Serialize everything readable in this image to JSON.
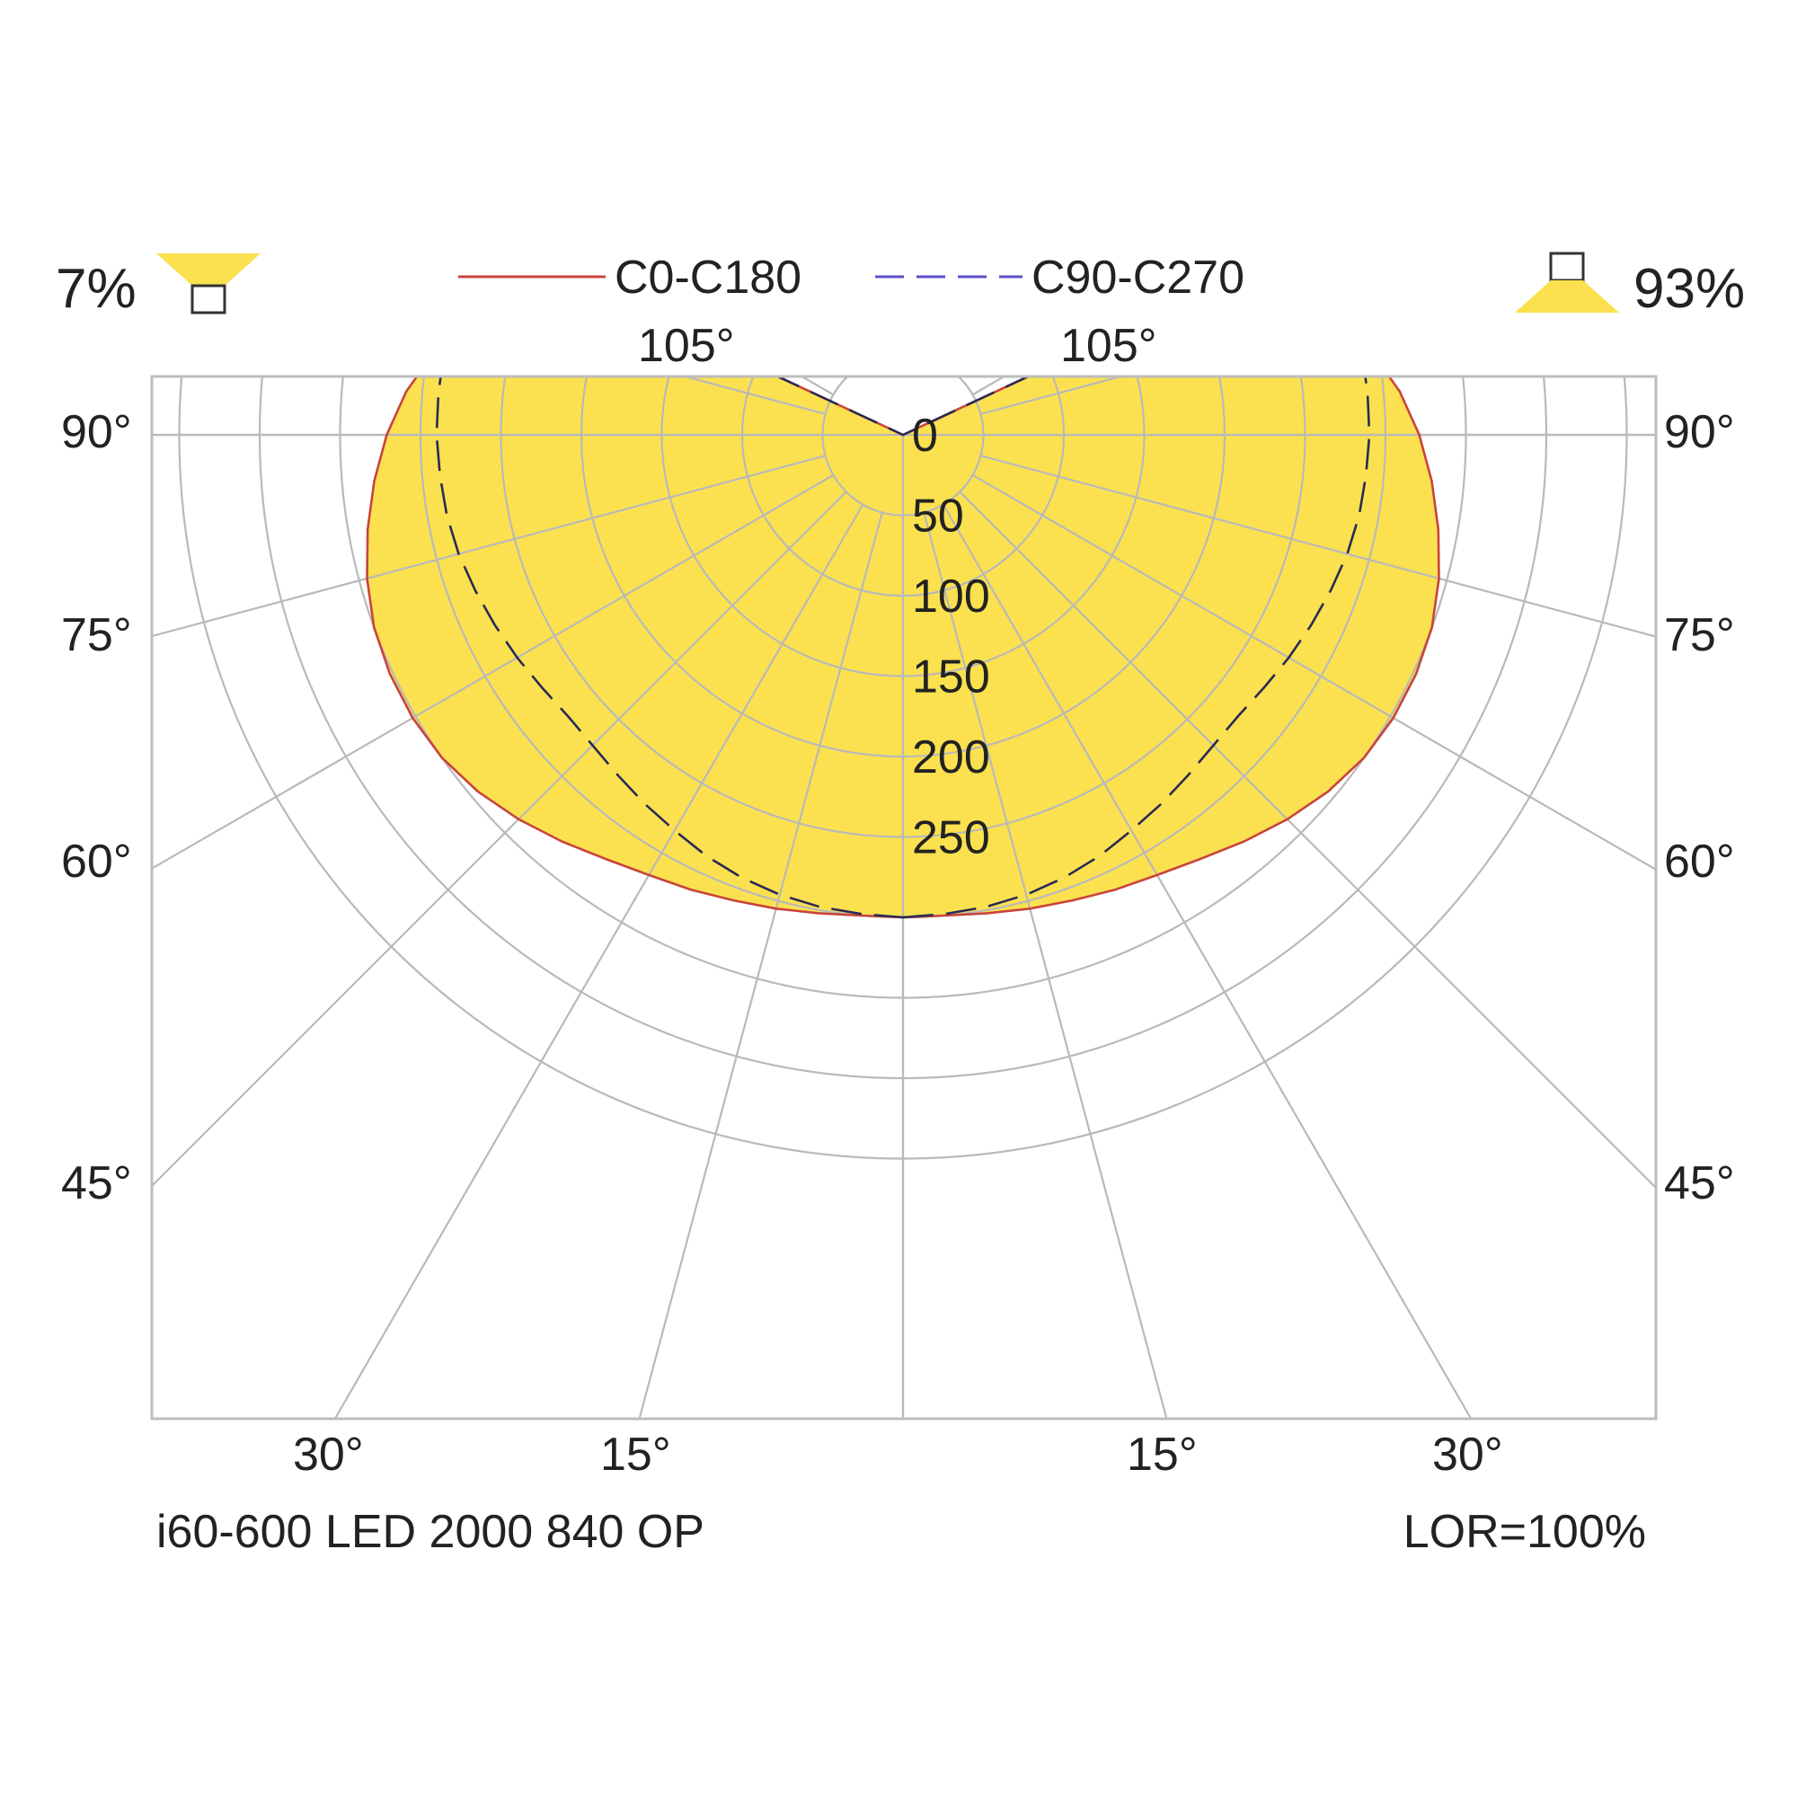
{
  "header": {
    "upward_percent": "7%",
    "downward_percent": "93%"
  },
  "footer": {
    "product_name": "i60-600 LED 2000 840 OP",
    "lor": "LOR=100%"
  },
  "colors": {
    "fill": "#FBE14F",
    "c0_line": "#C8443B",
    "c90_line": "#5A4FC8",
    "grid": "#B9B9B9",
    "frame": "#BDBDBD"
  },
  "chart_data": {
    "type": "polar-intensity",
    "unit": "cd/klm",
    "radial_ticks": [
      "0",
      "50",
      "100",
      "150",
      "200",
      "250"
    ],
    "radial_tick_values": [
      0,
      50,
      100,
      150,
      200,
      250
    ],
    "angle_labels_side": [
      "90°",
      "75°",
      "60°",
      "45°"
    ],
    "angle_labels_bottom": [
      "30°",
      "15°",
      "15°",
      "30°"
    ],
    "angle_labels_top": [
      "105°",
      "105°"
    ],
    "legend": [
      {
        "name": "C0-C180",
        "style": "solid",
        "color": "#C8443B"
      },
      {
        "name": "C90-C270",
        "style": "dashed",
        "color": "#5A4FC8"
      }
    ],
    "series": [
      {
        "name": "C0-C180",
        "angles_deg": [
          0,
          5,
          10,
          15,
          20,
          25,
          30,
          35,
          40,
          45,
          50,
          55,
          60,
          65,
          70,
          75,
          80,
          85,
          90,
          95,
          100,
          105,
          110,
          115,
          120
        ],
        "values": [
          300,
          300,
          302,
          305,
          308,
          312,
          316,
          322,
          330,
          338,
          345,
          350,
          352,
          352,
          350,
          345,
          338,
          330,
          321,
          310,
          296,
          278,
          252,
          208,
          0
        ]
      },
      {
        "name": "C90-C270",
        "angles_deg": [
          0,
          5,
          10,
          15,
          20,
          25,
          30,
          35,
          40,
          45,
          50,
          55,
          60,
          65,
          70,
          75,
          80,
          85,
          90,
          95,
          100,
          105,
          110,
          115,
          120
        ],
        "values": [
          300,
          299,
          298,
          296,
          293,
          289,
          284,
          280,
          276,
          273,
          272,
          274,
          277,
          280,
          283,
          286,
          288,
          289,
          290,
          290,
          290,
          290,
          290,
          290,
          0
        ]
      }
    ]
  }
}
